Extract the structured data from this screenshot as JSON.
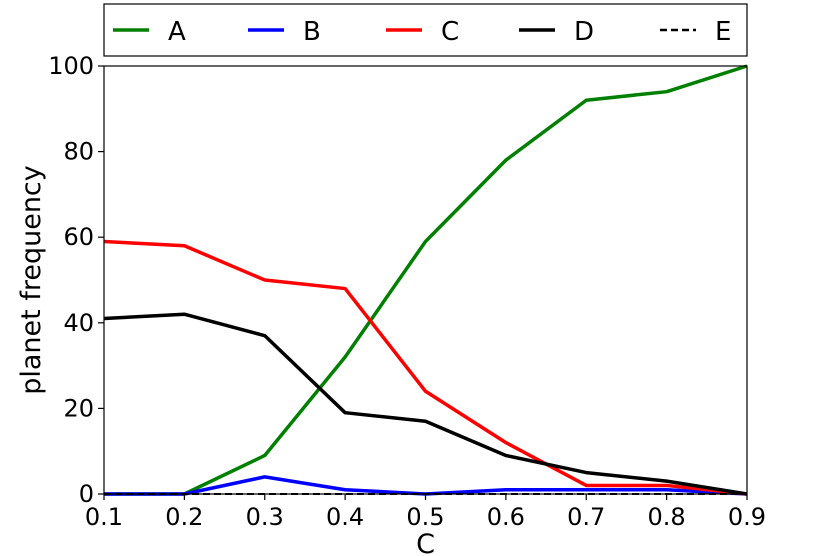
{
  "chart_data": {
    "type": "line",
    "title": "",
    "xlabel": "C",
    "ylabel": "planet frequency",
    "x": [
      0.1,
      0.2,
      0.3,
      0.4,
      0.5,
      0.6,
      0.7,
      0.8,
      0.9
    ],
    "xlim": [
      0.1,
      0.9
    ],
    "ylim": [
      0,
      100
    ],
    "xticks": [
      "0.1",
      "0.2",
      "0.3",
      "0.4",
      "0.5",
      "0.6",
      "0.7",
      "0.8",
      "0.9"
    ],
    "yticks": [
      "0",
      "20",
      "40",
      "60",
      "80",
      "100"
    ],
    "grid": false,
    "legend_position": "top, outside plot, single row",
    "series": [
      {
        "name": "A",
        "color": "#008000",
        "style": "solid",
        "values": [
          0,
          0,
          9,
          32,
          59,
          78,
          92,
          94,
          100
        ]
      },
      {
        "name": "B",
        "color": "#0000ff",
        "style": "solid",
        "values": [
          0,
          0,
          4,
          1,
          0,
          1,
          1,
          1,
          0
        ]
      },
      {
        "name": "C",
        "color": "#ff0000",
        "style": "solid",
        "values": [
          59,
          58,
          50,
          48,
          24,
          12,
          2,
          2,
          0
        ]
      },
      {
        "name": "D",
        "color": "#000000",
        "style": "solid",
        "values": [
          41,
          42,
          37,
          19,
          17,
          9,
          5,
          3,
          0
        ]
      },
      {
        "name": "E",
        "color": "#000000",
        "style": "dashed",
        "values": [
          0,
          0,
          0,
          0,
          0,
          0,
          0,
          0,
          0
        ]
      }
    ]
  }
}
